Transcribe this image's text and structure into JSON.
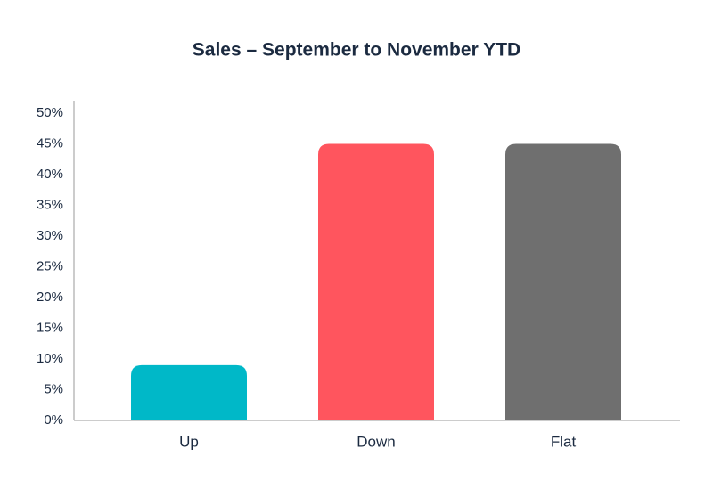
{
  "chart_data": {
    "type": "bar",
    "title": "Sales – September to November YTD",
    "categories": [
      "Up",
      "Down",
      "Flat"
    ],
    "values": [
      9,
      45,
      45
    ],
    "colors": [
      "#00b8c8",
      "#ff555e",
      "#6f6f6f"
    ],
    "ylim": [
      0,
      50
    ],
    "yticks": [
      {
        "value": 0,
        "label": "0%"
      },
      {
        "value": 5,
        "label": "5%"
      },
      {
        "value": 10,
        "label": "10%"
      },
      {
        "value": 15,
        "label": "15%"
      },
      {
        "value": 20,
        "label": "20%"
      },
      {
        "value": 25,
        "label": "25%"
      },
      {
        "value": 30,
        "label": "30%"
      },
      {
        "value": 35,
        "label": "35%"
      },
      {
        "value": 40,
        "label": "40%"
      },
      {
        "value": 45,
        "label": "45%"
      },
      {
        "value": 50,
        "label": "50%"
      }
    ],
    "grid": false
  }
}
